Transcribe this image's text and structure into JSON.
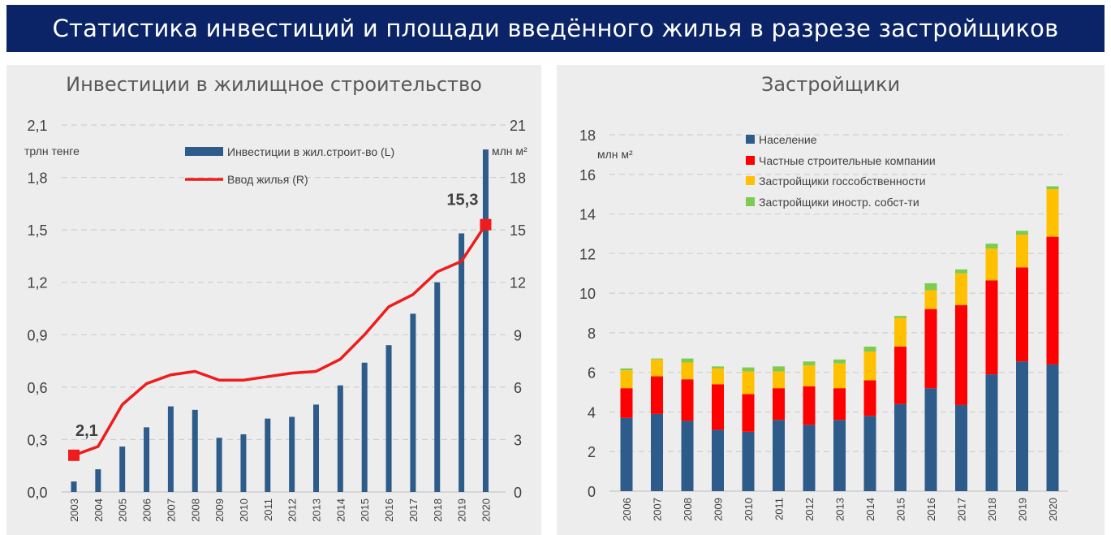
{
  "banner_title": "Статистика инвестиций и площади введённого жилья в разрезе застройщиков",
  "colors": {
    "banner": "#0b2468",
    "investment_bar": "#2e5c8a",
    "housing_line": "#ee1c1c",
    "naselenie": "#2e5c8a",
    "private": "#ff0000",
    "state": "#ffc000",
    "foreign": "#7ccc52"
  },
  "chart_data": [
    {
      "type": "bar",
      "title": "Инвестиции в жилищное строительство",
      "ylabel_left": "трлн тенге",
      "ylabel_right": "млн м²",
      "categories": [
        "2003",
        "2004",
        "2005",
        "2006",
        "2007",
        "2008",
        "2009",
        "2010",
        "2011",
        "2012",
        "2013",
        "2014",
        "2015",
        "2016",
        "2017",
        "2018",
        "2019",
        "2020"
      ],
      "left_ticks": [
        "0,0",
        "0,3",
        "0,6",
        "0,9",
        "1,2",
        "1,5",
        "1,8",
        "2,1"
      ],
      "right_ticks": [
        "0",
        "3",
        "6",
        "9",
        "12",
        "15",
        "18",
        "21"
      ],
      "ylim_left": [
        0,
        2.1
      ],
      "ylim_right": [
        0,
        21
      ],
      "grid": true,
      "legend_position": "top-center",
      "series": [
        {
          "name": "Инвестиции в жил.строит-во (L)",
          "type": "bar",
          "axis": "left",
          "values": [
            0.06,
            0.13,
            0.26,
            0.37,
            0.49,
            0.47,
            0.31,
            0.33,
            0.42,
            0.43,
            0.5,
            0.61,
            0.74,
            0.84,
            1.02,
            1.2,
            1.48,
            1.96
          ]
        },
        {
          "name": "Ввод жилья (R)",
          "type": "line",
          "axis": "right",
          "values": [
            2.1,
            2.6,
            5.0,
            6.2,
            6.7,
            6.9,
            6.4,
            6.4,
            6.6,
            6.8,
            6.9,
            7.6,
            9.0,
            10.6,
            11.3,
            12.6,
            13.2,
            15.3
          ]
        }
      ],
      "annotations": [
        {
          "category": "2003",
          "text": "2,1"
        },
        {
          "category": "2020",
          "text": "15,3"
        }
      ]
    },
    {
      "type": "bar",
      "stacked": true,
      "title": "Застройщики",
      "ylabel": "млн м²",
      "categories": [
        "2006",
        "2007",
        "2008",
        "2009",
        "2010",
        "2011",
        "2012",
        "2013",
        "2014",
        "2015",
        "2016",
        "2017",
        "2018",
        "2019",
        "2020"
      ],
      "y_ticks": [
        "0",
        "2",
        "4",
        "6",
        "8",
        "10",
        "12",
        "14",
        "16",
        "18"
      ],
      "ylim": [
        0,
        18
      ],
      "grid": true,
      "legend_position": "top-left",
      "series": [
        {
          "name": "Население",
          "values": [
            3.7,
            3.9,
            3.55,
            3.1,
            3.0,
            3.6,
            3.35,
            3.6,
            3.8,
            4.4,
            5.2,
            4.35,
            5.9,
            6.55,
            6.4
          ]
        },
        {
          "name": "Частные строительные компании",
          "values": [
            1.5,
            1.9,
            2.1,
            2.3,
            1.9,
            1.6,
            1.95,
            1.6,
            1.8,
            2.9,
            4.0,
            5.05,
            4.75,
            4.75,
            6.45
          ]
        },
        {
          "name": "Застройщики госсобственности",
          "values": [
            0.9,
            0.85,
            0.85,
            0.8,
            1.15,
            0.85,
            1.05,
            1.25,
            1.45,
            1.45,
            0.95,
            1.6,
            1.6,
            1.65,
            2.4
          ]
        },
        {
          "name": "Застройщики иностр. собст-ти",
          "values": [
            0.1,
            0.05,
            0.2,
            0.1,
            0.2,
            0.25,
            0.2,
            0.2,
            0.25,
            0.1,
            0.35,
            0.2,
            0.25,
            0.2,
            0.15
          ]
        }
      ]
    }
  ]
}
